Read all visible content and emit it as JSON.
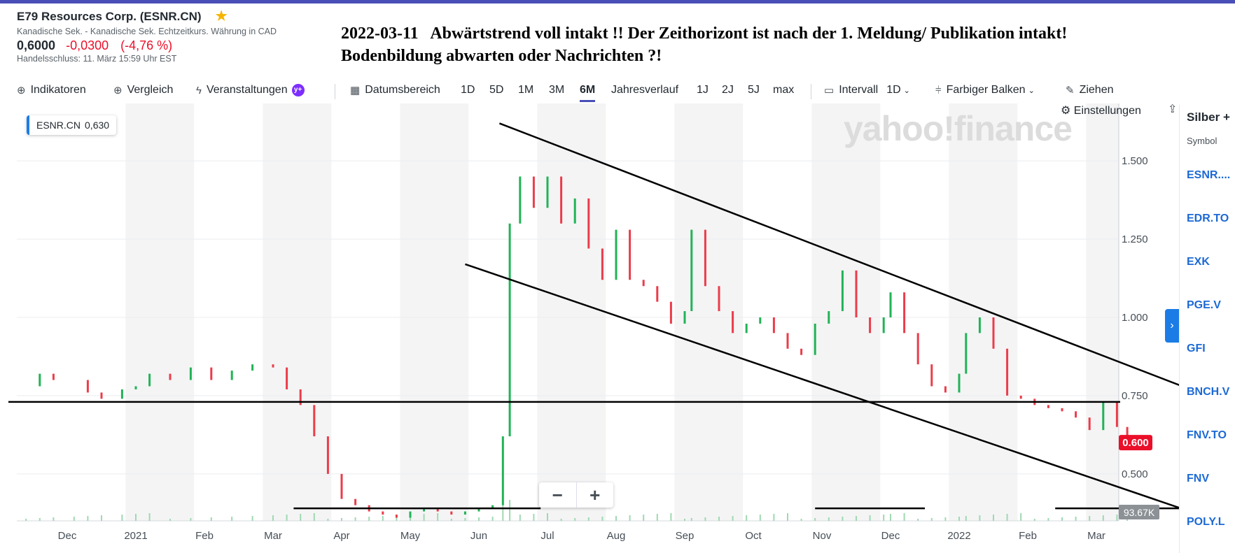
{
  "quote": {
    "title": "E79 Resources Corp. (ESNR.CN)",
    "exchange": "Kanadische Sek. - Kanadische Sek. Echtzeitkurs. Währung in CAD",
    "price": "0,6000",
    "change": "-0,0300",
    "change_pct": "(-4,76 %)",
    "close_info": "Handelsschluss: 11. März 15:59 Uhr EST"
  },
  "headline": {
    "line1": "2022-03-11   Abwärtstrend voll intakt !! Der Zeithorizont ist nach der 1. Meldung/ Publikation intakt!",
    "line2": "Bodenbildung abwarten oder Nachrichten ?!"
  },
  "toolbar": {
    "indicators": "Indikatoren",
    "compare": "Vergleich",
    "events": "Veranstaltungen",
    "date_range": "Datumsbereich",
    "ranges": [
      "1D",
      "5D",
      "1M",
      "3M",
      "6M",
      "Jahresverlauf",
      "1J",
      "2J",
      "5J",
      "max"
    ],
    "active_range": "6M",
    "interval_label": "Intervall",
    "interval_value": "1D",
    "bar_type": "Farbiger Balken",
    "draw": "Ziehen",
    "settings": "Einstellungen"
  },
  "legend": {
    "symbol": "ESNR.CN",
    "value": "0,630"
  },
  "watermark": "yahoo!finance",
  "zoom": {
    "minus": "−",
    "plus": "+"
  },
  "side_panel": {
    "title": "Silber +",
    "symbol_header": "Symbol",
    "items": [
      "ESNR....",
      "EDR.TO",
      "EXK",
      "PGE.V",
      "GFI",
      "BNCH.V",
      "FNV.TO",
      "FNV",
      "POLY.L"
    ]
  },
  "colors": {
    "up": "#21b356",
    "down": "#eb3c4a",
    "accent": "#4a4fb8",
    "link": "#1c69d4",
    "last_price_tag": "#eb0f29"
  },
  "chart_data": {
    "type": "line",
    "ylim": [
      0.35,
      1.65
    ],
    "y_ticks": [
      0.5,
      0.75,
      1.0,
      1.25,
      1.5
    ],
    "y_tick_labels": [
      "0.500",
      "0.750",
      "1.000",
      "1.250",
      "1.500"
    ],
    "x_labels": [
      "Dec",
      "2021",
      "Feb",
      "Mar",
      "Apr",
      "May",
      "Jun",
      "Jul",
      "Aug",
      "Sep",
      "Oct",
      "Nov",
      "Dec",
      "2022",
      "Feb",
      "Mar"
    ],
    "x_label_months": [
      0,
      1,
      2,
      3,
      4,
      5,
      6,
      7,
      8,
      9,
      10,
      11,
      12,
      13,
      14,
      15
    ],
    "x_month_start": "2020-12",
    "last_price": "0.600",
    "volume_label": "93.67K",
    "series": [
      {
        "values_per_month_key": "month",
        "points": [
          {
            "month": -0.6,
            "y": 0.78
          },
          {
            "month": -0.4,
            "y": 0.82
          },
          {
            "month": -0.2,
            "y": 0.8
          },
          {
            "month": 0.1,
            "y": 0.8
          },
          {
            "month": 0.3,
            "y": 0.76
          },
          {
            "month": 0.5,
            "y": 0.74
          },
          {
            "month": 0.8,
            "y": 0.77
          },
          {
            "month": 1.0,
            "y": 0.78
          },
          {
            "month": 1.2,
            "y": 0.82
          },
          {
            "month": 1.5,
            "y": 0.8
          },
          {
            "month": 1.8,
            "y": 0.84
          },
          {
            "month": 2.1,
            "y": 0.8
          },
          {
            "month": 2.4,
            "y": 0.83
          },
          {
            "month": 2.7,
            "y": 0.85
          },
          {
            "month": 3.0,
            "y": 0.84
          },
          {
            "month": 3.2,
            "y": 0.77
          },
          {
            "month": 3.4,
            "y": 0.72
          },
          {
            "month": 3.6,
            "y": 0.62
          },
          {
            "month": 3.8,
            "y": 0.5
          },
          {
            "month": 4.0,
            "y": 0.42
          },
          {
            "month": 4.2,
            "y": 0.4
          },
          {
            "month": 4.4,
            "y": 0.38
          },
          {
            "month": 4.6,
            "y": 0.37
          },
          {
            "month": 4.8,
            "y": 0.36
          },
          {
            "month": 5.0,
            "y": 0.38
          },
          {
            "month": 5.2,
            "y": 0.39
          },
          {
            "month": 5.4,
            "y": 0.38
          },
          {
            "month": 5.6,
            "y": 0.37
          },
          {
            "month": 5.8,
            "y": 0.38
          },
          {
            "month": 6.0,
            "y": 0.39
          },
          {
            "month": 6.2,
            "y": 0.4
          },
          {
            "month": 6.35,
            "y": 0.62
          },
          {
            "month": 6.45,
            "y": 1.3
          },
          {
            "month": 6.6,
            "y": 1.45
          },
          {
            "month": 6.8,
            "y": 1.35
          },
          {
            "month": 7.0,
            "y": 1.45
          },
          {
            "month": 7.2,
            "y": 1.3
          },
          {
            "month": 7.4,
            "y": 1.38
          },
          {
            "month": 7.6,
            "y": 1.22
          },
          {
            "month": 7.8,
            "y": 1.12
          },
          {
            "month": 8.0,
            "y": 1.28
          },
          {
            "month": 8.2,
            "y": 1.12
          },
          {
            "month": 8.4,
            "y": 1.1
          },
          {
            "month": 8.6,
            "y": 1.05
          },
          {
            "month": 8.8,
            "y": 0.98
          },
          {
            "month": 9.0,
            "y": 1.02
          },
          {
            "month": 9.1,
            "y": 1.28
          },
          {
            "month": 9.3,
            "y": 1.1
          },
          {
            "month": 9.5,
            "y": 1.02
          },
          {
            "month": 9.7,
            "y": 0.95
          },
          {
            "month": 9.9,
            "y": 0.98
          },
          {
            "month": 10.1,
            "y": 1.0
          },
          {
            "month": 10.3,
            "y": 0.95
          },
          {
            "month": 10.5,
            "y": 0.9
          },
          {
            "month": 10.7,
            "y": 0.88
          },
          {
            "month": 10.9,
            "y": 0.98
          },
          {
            "month": 11.1,
            "y": 1.02
          },
          {
            "month": 11.3,
            "y": 1.15
          },
          {
            "month": 11.5,
            "y": 1.0
          },
          {
            "month": 11.7,
            "y": 0.95
          },
          {
            "month": 11.9,
            "y": 1.0
          },
          {
            "month": 12.0,
            "y": 1.08
          },
          {
            "month": 12.2,
            "y": 0.95
          },
          {
            "month": 12.4,
            "y": 0.85
          },
          {
            "month": 12.6,
            "y": 0.78
          },
          {
            "month": 12.8,
            "y": 0.76
          },
          {
            "month": 13.0,
            "y": 0.82
          },
          {
            "month": 13.1,
            "y": 0.95
          },
          {
            "month": 13.3,
            "y": 1.0
          },
          {
            "month": 13.5,
            "y": 0.9
          },
          {
            "month": 13.7,
            "y": 0.75
          },
          {
            "month": 13.9,
            "y": 0.74
          },
          {
            "month": 14.1,
            "y": 0.72
          },
          {
            "month": 14.3,
            "y": 0.71
          },
          {
            "month": 14.5,
            "y": 0.7
          },
          {
            "month": 14.7,
            "y": 0.68
          },
          {
            "month": 14.9,
            "y": 0.64
          },
          {
            "month": 15.1,
            "y": 0.73
          },
          {
            "month": 15.3,
            "y": 0.65
          },
          {
            "month": 15.45,
            "y": 0.6
          }
        ]
      }
    ],
    "annotations": {
      "horizontal_levels": [
        0.73,
        0.39
      ],
      "channel_upper": [
        {
          "month": 6.3,
          "y": 1.62
        },
        {
          "month": 17.2,
          "y": 0.7
        }
      ],
      "channel_lower": [
        {
          "month": 5.8,
          "y": 1.17
        },
        {
          "month": 16.9,
          "y": 0.34
        }
      ]
    }
  }
}
